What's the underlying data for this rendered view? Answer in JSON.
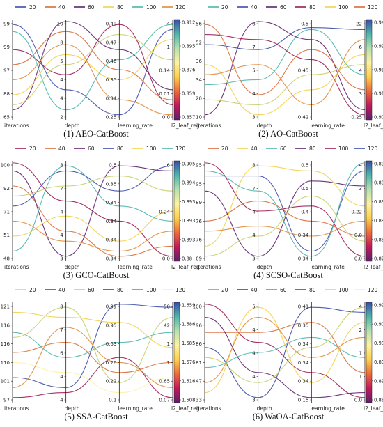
{
  "figure": {
    "legend_series": [
      "20",
      "40",
      "60",
      "80",
      "100",
      "120"
    ],
    "palette": {
      "series_colors": [
        "#3a8fb7",
        "#9b1b52",
        "#d96a37",
        "#f2d24a",
        "#c9cf6a",
        "#2a6f97"
      ],
      "colorbar_stops": [
        "#5e1f6e",
        "#c2185b",
        "#ee6a3a",
        "#fbd14b",
        "#fdf2a3",
        "#b6e0b0",
        "#4db6ac",
        "#3b4ba8"
      ],
      "axis_color": "#222222"
    }
  },
  "chart_data": [
    {
      "type": "parallel-coordinates",
      "caption": "(1) AEO-CatBoost",
      "legend": [
        "20",
        "40",
        "60",
        "80",
        "100",
        "120"
      ],
      "legend_colors": [
        "#3b4ba8",
        "#d96a37",
        "#5e1f6e",
        "#f2d24a",
        "#4db6ac",
        "#e08a3a"
      ],
      "axes": [
        {
          "label": "iterations",
          "ticks": [
            "99",
            "99",
            "97",
            "88",
            "65"
          ]
        },
        {
          "label": "depth",
          "ticks": [
            "10",
            "8",
            "5",
            "4",
            "4",
            "2"
          ]
        },
        {
          "label": "learning_rate",
          "ticks": [
            "0.49",
            "0.47",
            "0.46",
            "0.35",
            "0.34",
            "0.25"
          ]
        },
        {
          "label": "l2_leaf_reg",
          "ticks": [
            "4",
            "1",
            "0.14",
            "0.01",
            "0.0"
          ]
        }
      ],
      "colorbar_ticks": [
        "0.912",
        "0.895",
        "0.876",
        "0.859",
        "0.857"
      ],
      "lines": [
        {
          "color": "#3b4ba8",
          "values": [
            0.95,
            0.3,
            0.05,
            0.9
          ]
        },
        {
          "color": "#d96a37",
          "values": [
            0.55,
            0.88,
            0.5,
            0.2
          ]
        },
        {
          "color": "#5e1f6e",
          "values": [
            0.1,
            0.98,
            0.7,
            0.3
          ]
        },
        {
          "color": "#9b1b52",
          "values": [
            0.7,
            0.45,
            0.95,
            0.15
          ]
        },
        {
          "color": "#f2d24a",
          "values": [
            0.25,
            0.65,
            0.4,
            0.8
          ]
        },
        {
          "color": "#4db6ac",
          "values": [
            0.88,
            0.1,
            0.6,
            0.95
          ]
        },
        {
          "color": "#e08a3a",
          "values": [
            0.4,
            0.75,
            0.2,
            0.05
          ]
        },
        {
          "color": "#c9cf6a",
          "values": [
            0.15,
            0.55,
            0.85,
            0.6
          ]
        }
      ]
    },
    {
      "type": "parallel-coordinates",
      "caption": "(2) AO-CatBoost",
      "legend": [
        "20",
        "40",
        "60",
        "80",
        "100",
        "120"
      ],
      "legend_colors": [
        "#4db6ac",
        "#3b4ba8",
        "#5e1f6e",
        "#9b1b52",
        "#f2d24a",
        "#d96a37"
      ],
      "axes": [
        {
          "label": "iterations",
          "ticks": [
            "56",
            "52",
            "36",
            "34",
            "20",
            "10"
          ]
        },
        {
          "label": "depth",
          "ticks": [
            "8",
            "7",
            "5",
            "4",
            "3"
          ]
        },
        {
          "label": "learning_rate",
          "ticks": [
            "0.5",
            "0.45",
            "0.42"
          ]
        },
        {
          "label": "l2_leaf_reg",
          "ticks": [
            "22",
            "6",
            "4",
            "3",
            "0.25"
          ]
        }
      ],
      "colorbar_ticks": [
        "0.946",
        "0.929",
        "0.919",
        "0.918",
        "0.902"
      ],
      "lines": [
        {
          "color": "#4db6ac",
          "values": [
            0.35,
            0.4,
            0.9,
            0.45
          ]
        },
        {
          "color": "#3b4ba8",
          "values": [
            0.75,
            0.7,
            0.92,
            0.9
          ]
        },
        {
          "color": "#5e1f6e",
          "values": [
            0.05,
            0.98,
            0.8,
            0.1
          ]
        },
        {
          "color": "#9b1b52",
          "values": [
            0.85,
            0.8,
            0.6,
            0.05
          ]
        },
        {
          "color": "#f2d24a",
          "values": [
            0.55,
            0.05,
            0.3,
            0.65
          ]
        },
        {
          "color": "#d96a37",
          "values": [
            0.95,
            0.25,
            0.7,
            0.3
          ]
        },
        {
          "color": "#e08a3a",
          "values": [
            0.45,
            0.55,
            0.15,
            0.8
          ]
        },
        {
          "color": "#c9cf6a",
          "values": [
            0.2,
            0.15,
            0.45,
            0.55
          ]
        }
      ]
    },
    {
      "type": "parallel-coordinates",
      "caption": "(3) GCO-CatBoost",
      "legend": [
        "20",
        "40",
        "60",
        "80",
        "100",
        "120"
      ],
      "legend_colors": [
        "#9b1b52",
        "#d96a37",
        "#5e1f6e",
        "#3b4ba8",
        "#f2d24a",
        "#4db6ac"
      ],
      "axes": [
        {
          "label": "iterations",
          "ticks": [
            "100",
            "92",
            "71",
            "51",
            "48"
          ]
        },
        {
          "label": "depth",
          "ticks": [
            "8",
            "7",
            "4",
            "4",
            "3"
          ]
        },
        {
          "label": "learning_rate",
          "ticks": [
            "0.5",
            "0.35",
            "0.34",
            "0.34",
            "0.34",
            "0.34"
          ]
        },
        {
          "label": "l2_leaf_reg",
          "ticks": [
            "6",
            "0.24",
            "0.0"
          ]
        }
      ],
      "colorbar_ticks": [
        "0.905",
        "0.894",
        "0.893",
        "0.893",
        "0.893",
        "0.88"
      ],
      "lines": [
        {
          "color": "#9b1b52",
          "values": [
            0.98,
            0.6,
            0.4,
            0.05
          ]
        },
        {
          "color": "#d96a37",
          "values": [
            0.75,
            0.3,
            0.05,
            0.15
          ]
        },
        {
          "color": "#5e1f6e",
          "values": [
            0.9,
            0.05,
            0.95,
            0.9
          ]
        },
        {
          "color": "#3b4ba8",
          "values": [
            0.55,
            0.9,
            0.7,
            0.95
          ]
        },
        {
          "color": "#f2d24a",
          "values": [
            0.25,
            0.45,
            0.2,
            0.5
          ]
        },
        {
          "color": "#4db6ac",
          "values": [
            0.1,
            0.95,
            0.55,
            0.4
          ]
        },
        {
          "color": "#e08a3a",
          "values": [
            0.4,
            0.2,
            0.1,
            0.3
          ]
        },
        {
          "color": "#c9cf6a",
          "values": [
            0.65,
            0.75,
            0.85,
            0.7
          ]
        }
      ]
    },
    {
      "type": "parallel-coordinates",
      "caption": "(4) SCSO-CatBoost",
      "legend": [
        "20",
        "40",
        "60",
        "80",
        "100",
        "120"
      ],
      "legend_colors": [
        "#d96a37",
        "#f2d24a",
        "#4db6ac",
        "#5e1f6e",
        "#9b1b52",
        "#3b4ba8"
      ],
      "axes": [
        {
          "label": "iterations",
          "ticks": [
            "95",
            "95",
            "89",
            "76",
            "76",
            "69"
          ]
        },
        {
          "label": "depth",
          "ticks": [
            "8",
            "7",
            "4",
            "4",
            "3"
          ]
        },
        {
          "label": "learning_rate",
          "ticks": [
            "0.5",
            "0.5",
            "0.4",
            "0.34",
            "0.34"
          ]
        },
        {
          "label": "l2_leaf_reg",
          "ticks": [
            "4",
            "3",
            "0.22",
            "0.0",
            "0.0"
          ]
        }
      ],
      "colorbar_ticks": [
        "0.899",
        "0.897",
        "0.894",
        "0.88",
        "0.88",
        "0.879"
      ],
      "lines": [
        {
          "color": "#9b1b52",
          "values": [
            0.98,
            0.5,
            0.55,
            0.05
          ]
        },
        {
          "color": "#d96a37",
          "values": [
            0.4,
            0.6,
            0.4,
            0.25
          ]
        },
        {
          "color": "#5e1f6e",
          "values": [
            0.7,
            0.05,
            0.8,
            0.75
          ]
        },
        {
          "color": "#3b4ba8",
          "values": [
            0.85,
            0.85,
            0.1,
            0.9
          ]
        },
        {
          "color": "#f2d24a",
          "values": [
            0.15,
            0.95,
            0.9,
            0.55
          ]
        },
        {
          "color": "#4db6ac",
          "values": [
            0.9,
            0.7,
            0.05,
            0.98
          ]
        },
        {
          "color": "#e08a3a",
          "values": [
            0.3,
            0.35,
            0.25,
            0.4
          ]
        },
        {
          "color": "#c9cf6a",
          "values": [
            0.05,
            0.25,
            0.65,
            0.2
          ]
        }
      ]
    },
    {
      "type": "parallel-coordinates",
      "caption": "(5) SSA-CatBoost",
      "legend": [
        "20",
        "40",
        "60",
        "80",
        "100",
        "120"
      ],
      "legend_colors": [
        "#f2d24a",
        "#3b4ba8",
        "#c9cf6a",
        "#9b1b52",
        "#d96a37",
        "#fdf2a3"
      ],
      "axes": [
        {
          "label": "iterations",
          "ticks": [
            "121",
            "116",
            "116",
            "110",
            "101",
            "97"
          ]
        },
        {
          "label": "depth",
          "ticks": [
            "8",
            "7",
            "6",
            "4",
            "4"
          ]
        },
        {
          "label": "learning_rate",
          "ticks": [
            "0.99",
            "0.95",
            "0.63",
            "0.26",
            "0.22",
            "0.1"
          ]
        },
        {
          "label": "l2_leaf_reg",
          "ticks": [
            "50",
            "42",
            "1",
            "1",
            "0.65",
            "0.07"
          ]
        }
      ],
      "colorbar_ticks": [
        "1.659",
        "1.586",
        "1.585",
        "1.576",
        "1.516",
        "1.508"
      ],
      "lines": [
        {
          "color": "#3b4ba8",
          "values": [
            0.25,
            0.15,
            0.98,
            0.95
          ]
        },
        {
          "color": "#9b1b52",
          "values": [
            0.05,
            0.1,
            0.45,
            0.05
          ]
        },
        {
          "color": "#d96a37",
          "values": [
            0.5,
            0.6,
            0.3,
            0.4
          ]
        },
        {
          "color": "#4db6ac",
          "values": [
            0.7,
            0.45,
            0.6,
            0.7
          ]
        },
        {
          "color": "#f2d24a",
          "values": [
            0.9,
            0.85,
            0.8,
            0.55
          ]
        },
        {
          "color": "#c9cf6a",
          "values": [
            0.65,
            0.95,
            0.2,
            0.85
          ]
        },
        {
          "color": "#fdf2a3",
          "values": [
            0.4,
            0.3,
            0.1,
            0.25
          ]
        },
        {
          "color": "#e08a3a",
          "values": [
            0.15,
            0.75,
            0.4,
            0.15
          ]
        }
      ]
    },
    {
      "type": "parallel-coordinates",
      "caption": "(6) WaOA-CatBoost",
      "legend": [
        "20",
        "40",
        "60",
        "80",
        "100",
        "120"
      ],
      "legend_colors": [
        "#4db6ac",
        "#9b1b52",
        "#d96a37",
        "#3b4ba8",
        "#f2d24a",
        "#fdf2a3"
      ],
      "axes": [
        {
          "label": "iterations",
          "ticks": [
            "100",
            "96",
            "86",
            "81",
            "47",
            "33"
          ]
        },
        {
          "label": "depth",
          "ticks": [
            "5",
            "4",
            "4",
            "4",
            "3"
          ]
        },
        {
          "label": "learning_rate",
          "ticks": [
            "0.41",
            "0.35",
            "0.34",
            "0.34",
            "0.34",
            "0.15"
          ]
        },
        {
          "label": "l2_leaf_reg",
          "ticks": [
            "4",
            "2",
            "1",
            "1",
            "0.0"
          ]
        }
      ],
      "colorbar_ticks": [
        "0.924",
        "0.908",
        "0.903",
        "0.893",
        "0.89",
        "0.88"
      ],
      "lines": [
        {
          "color": "#9b1b52",
          "values": [
            0.98,
            0.6,
            0.3,
            0.05
          ]
        },
        {
          "color": "#d96a37",
          "values": [
            0.7,
            0.7,
            0.8,
            0.3
          ]
        },
        {
          "color": "#3b4ba8",
          "values": [
            0.55,
            0.05,
            0.95,
            0.9
          ]
        },
        {
          "color": "#4db6ac",
          "values": [
            0.35,
            0.5,
            0.65,
            0.45
          ]
        },
        {
          "color": "#f2d24a",
          "values": [
            0.1,
            0.95,
            0.2,
            0.8
          ]
        },
        {
          "color": "#5e1f6e",
          "values": [
            0.85,
            0.3,
            0.05,
            0.1
          ]
        },
        {
          "color": "#e08a3a",
          "values": [
            0.2,
            0.85,
            0.45,
            0.65
          ]
        },
        {
          "color": "#c9cf6a",
          "values": [
            0.45,
            0.2,
            0.55,
            0.95
          ]
        }
      ]
    }
  ]
}
